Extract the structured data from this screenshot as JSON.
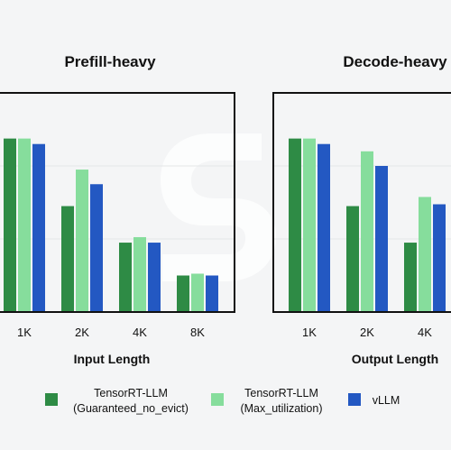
{
  "colors": {
    "background": "#f4f5f6",
    "watermark": "#ffffff",
    "gridline": "#e4e6e8",
    "frame": "#111111"
  },
  "legend": [
    {
      "line1": "TensorRT-LLM",
      "line2": "(Guaranteed_no_evict)",
      "color": "#2e8b45"
    },
    {
      "line1": "TensorRT-LLM",
      "line2": "(Max_utilization)",
      "color": "#86dd9c"
    },
    {
      "line1": "vLLM",
      "line2": "",
      "color": "#2358c2"
    }
  ],
  "chart_data": [
    {
      "type": "bar",
      "title": "Prefill-heavy",
      "xlabel": "Input Length",
      "ylabel": "",
      "categories": [
        "1K",
        "2K",
        "4K",
        "8K"
      ],
      "ylim": [
        0,
        1.2
      ],
      "grid": true,
      "series": [
        {
          "name": "TensorRT-LLM (Guaranteed_no_evict)",
          "values": [
            0.95,
            0.58,
            0.38,
            0.2
          ]
        },
        {
          "name": "TensorRT-LLM (Max_utilization)",
          "values": [
            0.95,
            0.78,
            0.41,
            0.21
          ]
        },
        {
          "name": "vLLM",
          "values": [
            0.92,
            0.7,
            0.38,
            0.2
          ]
        }
      ]
    },
    {
      "type": "bar",
      "title": "Decode-heavy",
      "xlabel": "Output Length",
      "ylabel": "",
      "categories": [
        "1K",
        "2K",
        "4K"
      ],
      "ylim": [
        0,
        1.2
      ],
      "grid": true,
      "series": [
        {
          "name": "TensorRT-LLM (Guaranteed_no_evict)",
          "values": [
            0.95,
            0.58,
            0.38
          ]
        },
        {
          "name": "TensorRT-LLM (Max_utilization)",
          "values": [
            0.95,
            0.88,
            0.63
          ]
        },
        {
          "name": "vLLM",
          "values": [
            0.92,
            0.8,
            0.59
          ]
        }
      ]
    }
  ]
}
